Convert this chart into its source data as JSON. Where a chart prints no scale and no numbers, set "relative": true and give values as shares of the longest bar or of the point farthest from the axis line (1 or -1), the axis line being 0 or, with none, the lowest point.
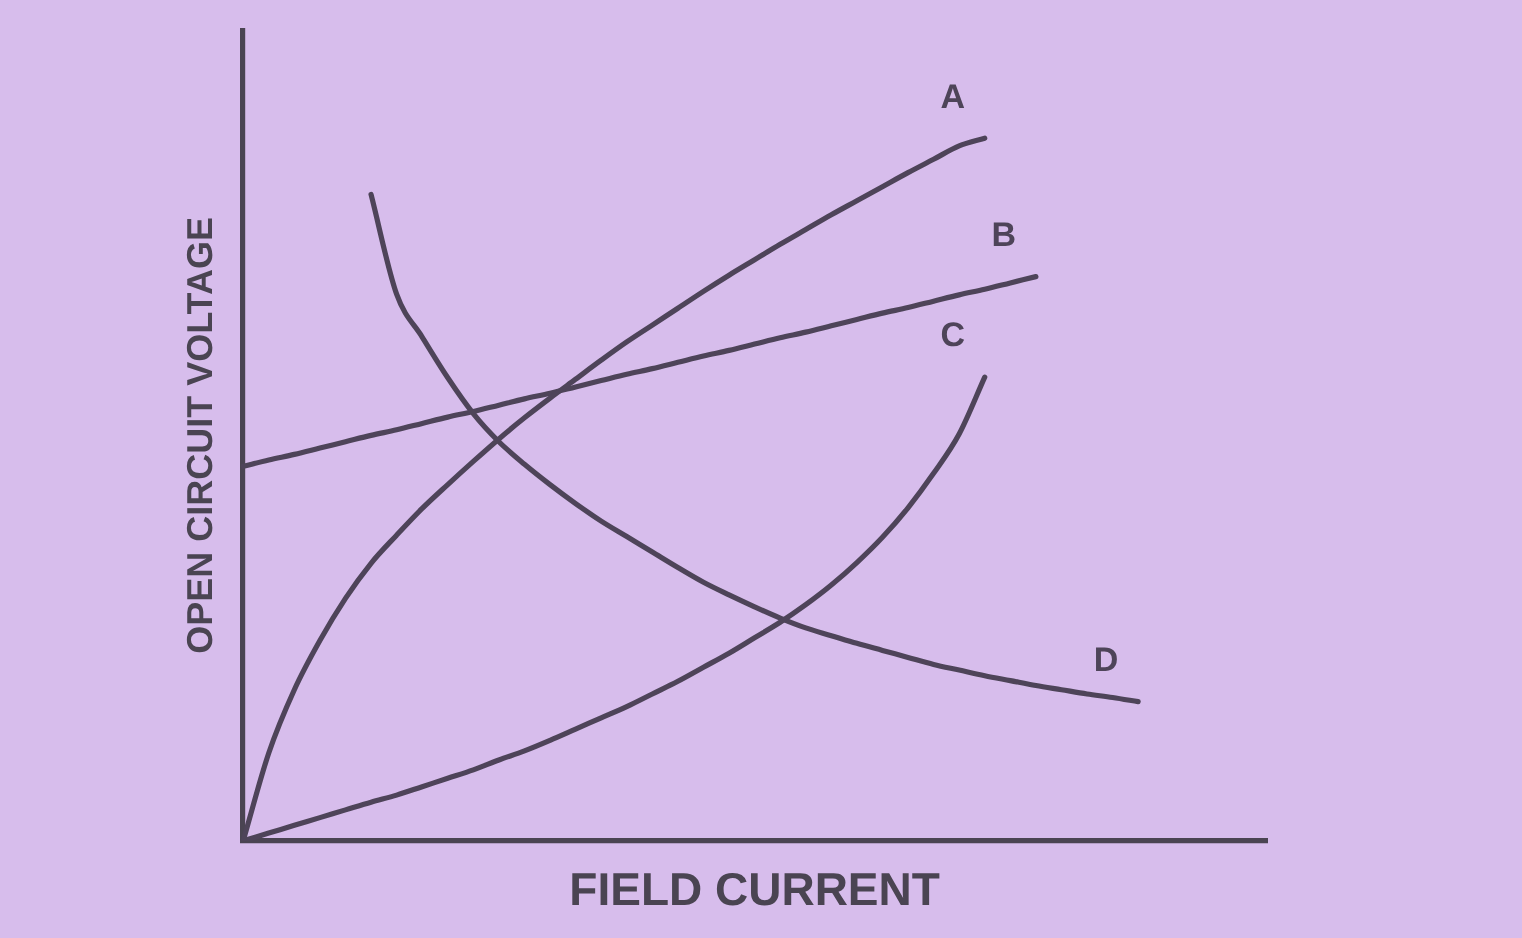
{
  "chart_data": {
    "type": "line",
    "relative": true,
    "marker": "none",
    "line_style": "solid",
    "xlabel": "FIELD CURRENT",
    "ylabel": "OPEN CIRCUIT VOLTAGE",
    "categories": [
      null,
      null,
      null,
      null,
      null,
      null,
      null,
      null,
      null,
      null,
      null,
      null,
      null,
      null,
      null,
      null,
      null,
      null,
      null,
      null,
      null,
      null,
      null,
      null,
      null,
      null,
      null,
      null,
      null,
      null,
      null,
      null,
      null,
      null,
      null,
      null,
      null,
      null,
      null,
      null,
      null
    ],
    "series": [
      {
        "name": "A",
        "color": "#4e4459",
        "values": [
          0,
          0.125,
          0.215,
          0.285,
          0.345,
          0.395,
          0.435,
          0.473,
          0.507,
          0.54,
          0.572,
          0.602,
          0.63,
          0.657,
          0.684,
          0.71,
          0.734,
          0.758,
          0.782,
          0.805,
          0.827,
          0.849,
          0.87,
          0.891,
          0.911,
          0.931,
          0.951,
          0.97,
          0.989,
          1,
          null,
          null,
          null,
          null,
          null,
          null,
          null,
          null,
          null,
          null,
          null
        ]
      },
      {
        "name": "B",
        "color": "#4e4459",
        "values": [
          0.533,
          0.542,
          0.55,
          0.559,
          0.568,
          0.577,
          0.585,
          0.594,
          0.603,
          0.611,
          0.62,
          0.629,
          0.637,
          0.646,
          0.655,
          0.664,
          0.672,
          0.681,
          0.69,
          0.698,
          0.707,
          0.716,
          0.724,
          0.733,
          0.742,
          0.751,
          0.759,
          0.768,
          0.777,
          0.785,
          0.794,
          0.803,
          null,
          null,
          null,
          null,
          null,
          null,
          null,
          null,
          null
        ]
      },
      {
        "name": "C",
        "color": "#4e4459",
        "values": [
          0,
          0.011,
          0.022,
          0.033,
          0.044,
          0.055,
          0.065,
          0.077,
          0.089,
          0.101,
          0.115,
          0.128,
          0.143,
          0.159,
          0.175,
          0.191,
          0.209,
          0.227,
          0.247,
          0.267,
          0.289,
          0.311,
          0.336,
          0.364,
          0.396,
          0.432,
          0.474,
          0.523,
          0.579,
          0.66,
          null,
          null,
          null,
          null,
          null,
          null,
          null,
          null,
          null,
          null,
          null
        ]
      },
      {
        "name": "D",
        "color": "#4e4459",
        "values": [
          null,
          null,
          null,
          null,
          null,
          0.92,
          0.778,
          0.717,
          0.659,
          0.608,
          0.568,
          0.536,
          0.507,
          0.48,
          0.455,
          0.433,
          0.411,
          0.389,
          0.368,
          0.35,
          0.333,
          0.317,
          0.303,
          0.292,
          0.281,
          0.271,
          0.261,
          0.251,
          0.243,
          0.235,
          0.228,
          0.221,
          0.215,
          0.209,
          0.204,
          0.198,
          null,
          null,
          null,
          null,
          null
        ]
      }
    ]
  }
}
